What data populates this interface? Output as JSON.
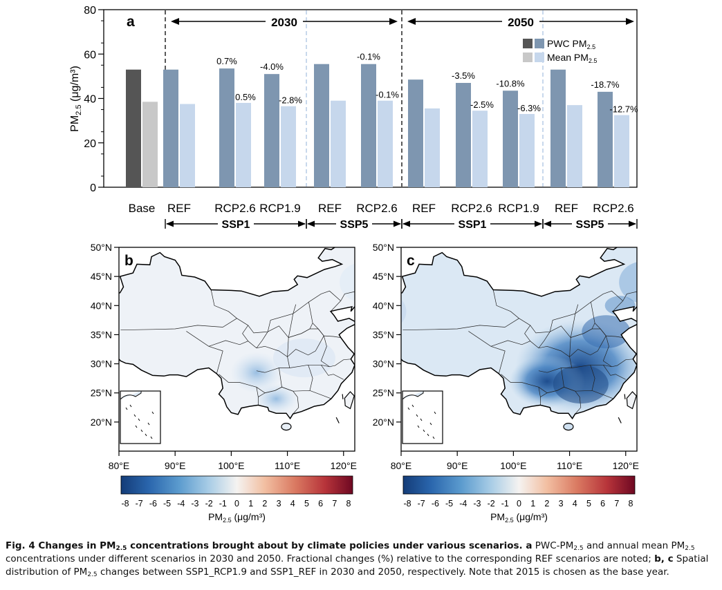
{
  "panel_labels": {
    "a": "a",
    "b": "b",
    "c": "c"
  },
  "chart_data": [
    {
      "type": "bar",
      "ylabel_main": "PM",
      "ylabel_sub": "2.5",
      "ylabel_unit": " (μg/m³)",
      "ylim": [
        0,
        80
      ],
      "yticks": [
        0,
        20,
        40,
        60,
        80
      ],
      "period_labels": [
        "2030",
        "2050"
      ],
      "categories": [
        "Base",
        "REF",
        "RCP2.6",
        "RCP1.9",
        "REF",
        "RCP2.6",
        "REF",
        "RCP2.6",
        "RCP1.9",
        "REF",
        "RCP2.6"
      ],
      "groups": [
        {
          "label": "SSP1"
        },
        {
          "label": "SSP5"
        },
        {
          "label": "SSP1"
        },
        {
          "label": "SSP5"
        }
      ],
      "legend": {
        "placement": "top-right",
        "entries": [
          {
            "main": "PWC PM",
            "sub": "2.5",
            "colors": [
              "#555555",
              "#7e96b0"
            ]
          },
          {
            "main": "Mean PM",
            "sub": "2.5",
            "colors": [
              "#c8c8c8",
              "#c6d7ec"
            ]
          }
        ]
      },
      "series": [
        {
          "name": "PWC PM2.5",
          "values": [
            53.0,
            53.0,
            53.5,
            51.0,
            55.5,
            55.5,
            48.5,
            47.0,
            43.5,
            53.0,
            43.0
          ],
          "labels": [
            "",
            "",
            "0.7%",
            "-4.0%",
            "",
            "-0.1%",
            "",
            "-3.5%",
            "-10.8%",
            "",
            "-18.7%"
          ]
        },
        {
          "name": "Mean PM2.5",
          "values": [
            38.5,
            37.5,
            38.0,
            36.5,
            39.0,
            39.0,
            35.5,
            34.5,
            33.0,
            37.0,
            32.5
          ],
          "labels": [
            "",
            "",
            "0.5%",
            "-2.8%",
            "",
            "-0.1%",
            "",
            "-2.5%",
            "-6.3%",
            "",
            "-12.7%"
          ]
        }
      ],
      "colors": {
        "base_pwc": "#555555",
        "base_mean": "#c8c8c8",
        "pwc": "#7e96b0",
        "mean": "#c6d7ec"
      }
    },
    {
      "type": "heatmap",
      "panel": "b",
      "xlim": [
        80,
        122
      ],
      "ylim": [
        15,
        50
      ],
      "xticks": [
        "80°E",
        "90°E",
        "100°E",
        "110°E",
        "120°E"
      ],
      "yticks": [
        "20°N",
        "25°N",
        "30°N",
        "35°N",
        "40°N",
        "45°N",
        "50°N"
      ],
      "colorbar_ticks": [
        "-8",
        "-7",
        "-6",
        "-5",
        "-4",
        "-3",
        "-2",
        "-1",
        "0",
        "1",
        "2",
        "3",
        "4",
        "5",
        "6",
        "7",
        "8"
      ],
      "colorbar_label_main": "PM",
      "colorbar_label_sub": "2.5",
      "colorbar_label_unit": " (μg/m³)"
    },
    {
      "type": "heatmap",
      "panel": "c",
      "xlim": [
        80,
        122
      ],
      "ylim": [
        15,
        50
      ],
      "xticks": [
        "80°E",
        "90°E",
        "100°E",
        "110°E",
        "120°E"
      ],
      "yticks": [
        "20°N",
        "25°N",
        "30°N",
        "35°N",
        "40°N",
        "45°N",
        "50°N"
      ],
      "colorbar_ticks": [
        "-8",
        "-7",
        "-6",
        "-5",
        "-4",
        "-3",
        "-2",
        "-1",
        "0",
        "1",
        "2",
        "3",
        "4",
        "5",
        "6",
        "7",
        "8"
      ],
      "colorbar_label_main": "PM",
      "colorbar_label_sub": "2.5",
      "colorbar_label_unit": " (μg/m³)"
    }
  ],
  "caption": {
    "fig": "Fig. 4 Changes in PM",
    "fig_sub": "2.5",
    "fig_rest": " concentrations brought about by climate policies under various scenarios.",
    "a_label": " a",
    "t1": " PWC-PM",
    "t1_sub": "2.5",
    "t2": " and annual mean PM",
    "t2_sub": "2.5",
    "t3": " concentrations under different scenarios in 2030 and 2050. Fractional changes (%) relative to the corresponding REF scenarios are noted; ",
    "bc_label": "b, c",
    "t4": " Spatial distribution of PM",
    "t4_sub": "2.5",
    "t5": " changes between SSP1_RCP1.9 and SSP1_REF in 2030 and 2050, respectively. Note that 2015 is chosen as the base year."
  }
}
